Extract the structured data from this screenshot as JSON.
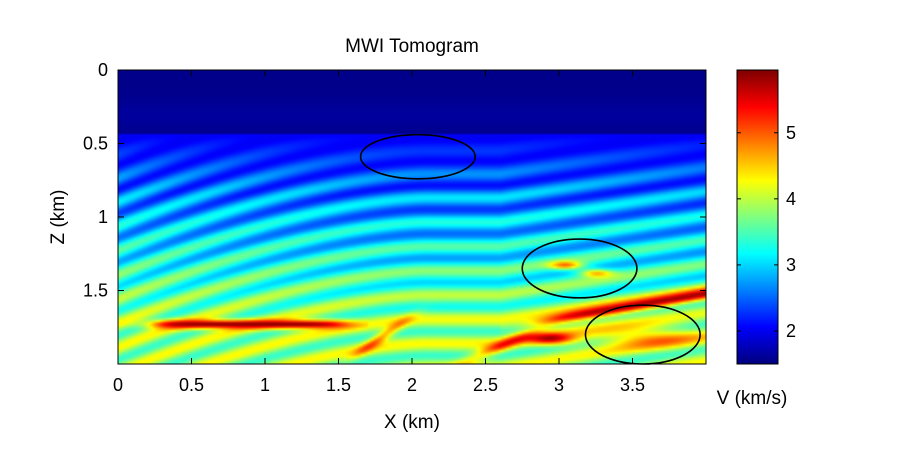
{
  "chart_data": {
    "type": "heatmap",
    "title": "MWI Tomogram",
    "xlabel": "X (km)",
    "ylabel": "Z (km)",
    "xlim": [
      0,
      4
    ],
    "ylim": [
      0,
      2
    ],
    "y_reversed": true,
    "xticks": [
      "0",
      "0.5",
      "1",
      "1.5",
      "2",
      "2.5",
      "3",
      "3.5"
    ],
    "yticks": [
      "0",
      "0.5",
      "1",
      "1.5"
    ],
    "colormap": "jet",
    "colorbar": {
      "label": "V (km/s)",
      "clim": [
        1.5,
        5.95
      ],
      "ticks": [
        "2",
        "3",
        "4",
        "5"
      ]
    },
    "grid": false,
    "annotations": [
      {
        "shape": "ellipse",
        "center_x": 2.04,
        "center_z": 0.59,
        "semi_x": 0.39,
        "semi_z": 0.15
      },
      {
        "shape": "ellipse",
        "center_x": 3.14,
        "center_z": 1.35,
        "semi_x": 0.39,
        "semi_z": 0.2
      },
      {
        "shape": "ellipse",
        "center_x": 3.57,
        "center_z": 1.8,
        "semi_x": 0.39,
        "semi_z": 0.2
      }
    ],
    "features": [
      {
        "description_label": "water layer",
        "z_range": [
          0,
          0.43
        ],
        "velocity": 1.55
      },
      {
        "description_label": "high-velocity layer",
        "x_range": [
          0.2,
          1.6
        ],
        "z": 1.73,
        "velocity": 5.9
      },
      {
        "description_label": "dipping high-velocity layer",
        "x_range": [
          2.8,
          4.0
        ],
        "z_range": [
          1.72,
          1.52
        ],
        "velocity": 5.8
      }
    ]
  },
  "colors": {
    "axis": "#000000",
    "annotation": "#000000"
  }
}
